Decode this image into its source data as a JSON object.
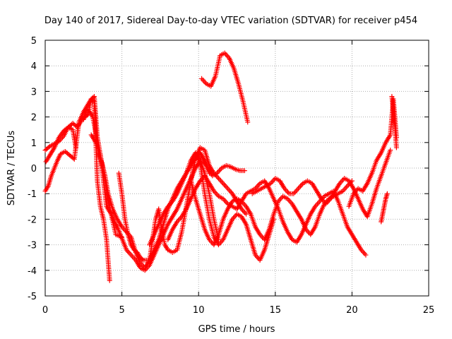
{
  "chart_data": {
    "type": "scatter",
    "title": "Day 140 of 2017, Sidereal Day-to-day VTEC variation (SDTVAR) for receiver p454",
    "xlabel": "GPS time / hours",
    "ylabel": "SDTVAR / TECUs",
    "xlim": [
      0,
      25
    ],
    "ylim": [
      -5,
      5
    ],
    "xticks": [
      0,
      5,
      10,
      15,
      20,
      25
    ],
    "yticks": [
      -5,
      -4,
      -3,
      -2,
      -1,
      0,
      1,
      2,
      3,
      4,
      5
    ],
    "grid": true,
    "marker": "+",
    "color": "#ff0000",
    "series": [
      {
        "name": "s1",
        "x": [
          0.0,
          0.3,
          0.6,
          0.9,
          1.2,
          1.5,
          1.8,
          2.0
        ],
        "y": [
          0.7,
          0.85,
          0.95,
          1.05,
          1.25,
          1.6,
          1.5,
          0.8
        ]
      },
      {
        "name": "s2",
        "x": [
          0.0,
          0.2,
          0.4,
          0.6,
          0.8,
          1.0,
          1.3,
          1.6,
          1.9,
          2.2,
          2.5,
          2.8,
          3.0,
          3.2,
          3.4,
          3.6,
          3.8,
          4.0,
          4.2
        ],
        "y": [
          -0.9,
          -0.7,
          -0.3,
          0.0,
          0.3,
          0.55,
          0.65,
          0.5,
          0.35,
          1.8,
          2.2,
          2.5,
          2.7,
          2.6,
          -0.5,
          -1.5,
          -2.0,
          -2.8,
          -4.4
        ]
      },
      {
        "name": "s3",
        "x": [
          0.05,
          0.3,
          0.6,
          0.9,
          1.2,
          1.5,
          1.8,
          2.1,
          2.4,
          2.6,
          2.8,
          3.0,
          3.2,
          3.4,
          3.6,
          3.8,
          4.0,
          4.3,
          4.6,
          5.0
        ],
        "y": [
          0.25,
          0.5,
          0.8,
          1.2,
          1.45,
          1.6,
          1.75,
          1.6,
          1.9,
          2.0,
          2.1,
          2.7,
          2.8,
          1.2,
          0.5,
          -0.5,
          -1.5,
          -1.8,
          -2.6,
          -2.7
        ]
      },
      {
        "name": "s4",
        "x": [
          2.5,
          2.7,
          2.9,
          3.1,
          3.3,
          3.5,
          3.7,
          3.9,
          4.1,
          4.4,
          4.7,
          5.0,
          5.3,
          5.6,
          5.9,
          6.2,
          6.5,
          6.8,
          7.1,
          7.4,
          7.7,
          8.0,
          8.3,
          8.6,
          8.9,
          9.2,
          9.5,
          9.8,
          10.1,
          10.4,
          10.7
        ],
        "y": [
          1.9,
          2.3,
          2.2,
          2.0,
          1.4,
          0.5,
          0.2,
          -0.3,
          -1.0,
          -1.6,
          -2.0,
          -2.3,
          -2.5,
          -2.7,
          -3.3,
          -3.7,
          -3.9,
          -3.6,
          -3.2,
          -2.8,
          -2.2,
          -1.6,
          -1.2,
          -0.8,
          -0.5,
          -0.2,
          0.1,
          0.4,
          0.6,
          0.3,
          -0.2
        ]
      },
      {
        "name": "s5",
        "x": [
          3.0,
          3.3,
          3.6,
          3.9,
          4.1,
          4.3,
          4.5,
          4.7,
          4.9,
          5.1,
          5.3,
          5.6,
          5.9,
          6.2,
          6.5,
          6.8,
          7.1,
          7.4,
          7.7,
          8.0,
          8.3,
          8.6,
          8.9,
          9.2,
          9.5,
          9.8,
          10.1,
          10.4,
          10.7,
          11.0,
          11.3
        ],
        "y": [
          1.3,
          1.0,
          0.5,
          -0.5,
          -1.2,
          -1.8,
          -2.1,
          -2.3,
          -2.6,
          -2.9,
          -3.2,
          -3.4,
          -3.6,
          -3.9,
          -4.0,
          -3.8,
          -3.4,
          -3.0,
          -2.6,
          -2.2,
          -1.9,
          -1.6,
          -1.2,
          -0.8,
          -0.4,
          0.0,
          0.3,
          -0.2,
          -1.0,
          -2.0,
          -2.8
        ]
      },
      {
        "name": "s6",
        "x": [
          4.8,
          5.0,
          5.2,
          5.4,
          5.6,
          5.8,
          6.0,
          6.2,
          6.4,
          6.6,
          6.8,
          7.0,
          7.2,
          7.4,
          7.6,
          7.8,
          8.0,
          8.3,
          8.6,
          8.9,
          9.2,
          9.5,
          9.8,
          10.1,
          10.4,
          10.7,
          11.0,
          11.3,
          11.6,
          11.9,
          12.2,
          12.5,
          12.8,
          13.1
        ],
        "y": [
          -0.2,
          -1.0,
          -2.0,
          -2.6,
          -3.0,
          -3.2,
          -3.3,
          -3.5,
          -3.6,
          -3.6,
          -3.6,
          -2.8,
          -2.0,
          -1.6,
          -2.4,
          -3.0,
          -3.2,
          -3.3,
          -3.2,
          -2.5,
          -1.5,
          -0.5,
          0.4,
          0.8,
          0.7,
          0.1,
          -0.2,
          -0.4,
          -0.6,
          -0.8,
          -1.0,
          -1.3,
          -1.6,
          -1.8
        ]
      },
      {
        "name": "s7",
        "x": [
          6.8,
          7.1,
          7.4,
          7.7,
          8.0,
          8.3,
          8.6,
          8.9,
          9.2,
          9.5,
          9.8,
          10.1,
          10.4,
          10.7,
          11.0,
          11.3,
          11.6,
          11.9,
          12.2,
          12.5,
          12.8,
          13.1,
          13.4,
          13.7,
          14.0,
          14.3,
          14.6,
          14.9
        ],
        "y": [
          -3.0,
          -2.6,
          -2.2,
          -1.8,
          -1.5,
          -1.3,
          -1.0,
          -0.6,
          -0.2,
          0.3,
          0.6,
          0.2,
          -1.0,
          -2.0,
          -2.7,
          -3.0,
          -2.8,
          -2.4,
          -2.0,
          -1.8,
          -1.9,
          -2.2,
          -2.8,
          -3.4,
          -3.6,
          -3.2,
          -2.6,
          -2.0
        ]
      },
      {
        "name": "s8",
        "x": [
          8.0,
          8.3,
          8.6,
          8.9,
          9.2,
          9.5,
          9.8,
          10.1,
          10.4,
          10.7,
          11.0,
          11.3,
          11.6,
          11.9,
          12.2,
          12.5,
          12.8,
          13.1,
          13.4,
          13.7,
          14.0,
          14.3,
          14.6,
          14.9,
          15.2,
          15.5,
          15.8,
          16.1,
          16.4,
          16.7,
          17.0,
          17.3,
          17.6,
          17.9,
          18.2,
          18.5,
          18.8,
          19.1,
          19.4,
          19.7,
          20.0,
          20.3,
          20.6,
          20.9
        ],
        "y": [
          -2.8,
          -2.4,
          -2.1,
          -1.9,
          -1.6,
          -1.2,
          -0.8,
          -0.5,
          -0.3,
          -0.6,
          -0.9,
          -1.1,
          -1.2,
          -1.4,
          -1.5,
          -1.6,
          -1.3,
          -1.0,
          -0.9,
          -0.8,
          -0.6,
          -0.5,
          -0.8,
          -1.2,
          -1.6,
          -2.1,
          -2.5,
          -2.8,
          -2.9,
          -2.6,
          -2.2,
          -1.8,
          -1.5,
          -1.3,
          -1.1,
          -1.0,
          -0.9,
          -1.3,
          -1.8,
          -2.3,
          -2.6,
          -2.9,
          -3.2,
          -3.4
        ]
      },
      {
        "name": "s9",
        "x": [
          9.5,
          9.8,
          10.1,
          10.4,
          10.7,
          11.0,
          11.3,
          11.6,
          11.9,
          12.2,
          12.5,
          12.8,
          13.1,
          13.4,
          13.7,
          14.0,
          14.3,
          14.6,
          14.9,
          15.2,
          15.5,
          15.8,
          16.1,
          16.4,
          16.7,
          17.0,
          17.3,
          17.6,
          17.9,
          18.2,
          18.5,
          18.8,
          19.1,
          19.4,
          19.7,
          20.0
        ],
        "y": [
          -0.5,
          -1.2,
          -1.8,
          -2.4,
          -2.8,
          -3.0,
          -2.6,
          -2.0,
          -1.6,
          -1.3,
          -1.2,
          -1.3,
          -1.5,
          -1.8,
          -2.3,
          -2.6,
          -2.8,
          -2.4,
          -1.8,
          -1.3,
          -1.1,
          -1.2,
          -1.4,
          -1.7,
          -2.0,
          -2.4,
          -2.6,
          -2.3,
          -1.8,
          -1.4,
          -1.2,
          -1.1,
          -1.0,
          -0.9,
          -0.7,
          -0.5
        ]
      },
      {
        "name": "s10",
        "x": [
          10.0,
          10.3,
          10.6,
          10.9,
          11.2,
          11.5,
          11.8,
          12.1,
          12.4,
          12.7,
          13.0
        ],
        "y": [
          0.5,
          0.3,
          0.0,
          -0.3,
          -0.2,
          0.0,
          0.1,
          0.05,
          -0.05,
          -0.1,
          -0.1
        ]
      },
      {
        "name": "s11",
        "x": [
          10.2,
          10.5,
          10.8,
          11.1,
          11.4,
          11.7,
          12.0,
          12.3,
          12.6,
          12.9,
          13.2
        ],
        "y": [
          3.5,
          3.3,
          3.2,
          3.6,
          4.4,
          4.5,
          4.3,
          3.9,
          3.3,
          2.6,
          1.8
        ]
      },
      {
        "name": "s12",
        "x": [
          13.5,
          13.8,
          14.1,
          14.4,
          14.7,
          15.0,
          15.3,
          15.6,
          15.9,
          16.2,
          16.5,
          16.8,
          17.1,
          17.4,
          17.7,
          18.0,
          18.3,
          18.6,
          18.9,
          19.2,
          19.5,
          19.8,
          20.1,
          20.4,
          20.7,
          21.0,
          21.3,
          21.6,
          21.9,
          22.2,
          22.5
        ],
        "y": [
          -1.0,
          -0.9,
          -0.8,
          -0.7,
          -0.6,
          -0.4,
          -0.5,
          -0.8,
          -1.0,
          -1.0,
          -0.8,
          -0.6,
          -0.5,
          -0.6,
          -0.9,
          -1.2,
          -1.4,
          -1.2,
          -0.9,
          -0.6,
          -0.4,
          -0.5,
          -0.8,
          -1.2,
          -1.6,
          -1.9,
          -1.4,
          -0.8,
          -0.3,
          0.2,
          0.7
        ]
      },
      {
        "name": "s13",
        "x": [
          19.8,
          20.1,
          20.4,
          20.7,
          21.0,
          21.3,
          21.6,
          21.9,
          22.2,
          22.5,
          22.7,
          22.9
        ],
        "y": [
          -1.5,
          -1.0,
          -0.8,
          -0.9,
          -0.6,
          -0.2,
          0.3,
          0.6,
          1.0,
          1.3,
          2.7,
          1.2
        ]
      },
      {
        "name": "s14",
        "x": [
          22.6,
          22.7,
          22.8,
          22.9
        ],
        "y": [
          2.8,
          2.2,
          1.6,
          0.8
        ]
      },
      {
        "name": "s15",
        "x": [
          21.9,
          22.0,
          22.1,
          22.2,
          22.3
        ],
        "y": [
          -2.1,
          -1.8,
          -1.5,
          -1.2,
          -1.0
        ]
      }
    ]
  }
}
